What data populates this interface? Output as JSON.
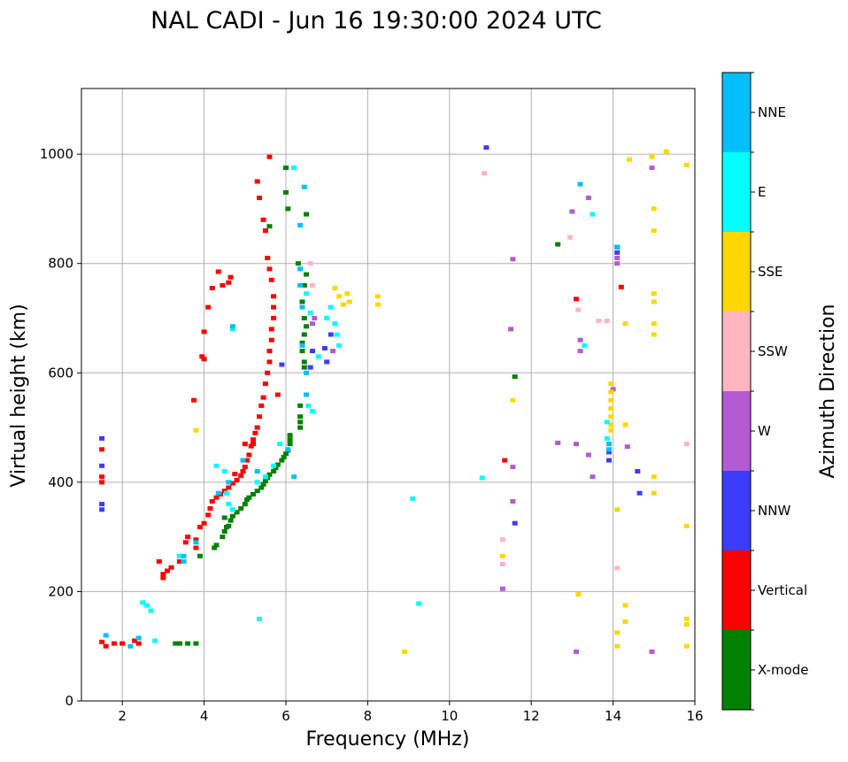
{
  "colors": {
    "X-mode": "#008000",
    "Vertical": "#ff0000",
    "NNW": "#3c3cff",
    "W": "#b45ad2",
    "SSW": "#ffb6c1",
    "SSE": "#ffd700",
    "E": "#00ffff",
    "NNE": "#00bfff"
  },
  "chart_data": {
    "type": "scatter",
    "title": "NAL CADI - Jun 16 19:30:00 2024 UTC",
    "xlabel": "Frequency (MHz)",
    "ylabel": "Virtual height (km)",
    "xlim": [
      1.0,
      16.0
    ],
    "ylim": [
      0,
      1120
    ],
    "xticks": [
      2,
      4,
      6,
      8,
      10,
      12,
      14,
      16
    ],
    "yticks": [
      0,
      200,
      400,
      600,
      800,
      1000
    ],
    "grid": true,
    "colorbar": {
      "label": "Azimuth Direction",
      "categories": [
        "X-mode",
        "Vertical",
        "NNW",
        "W",
        "SSW",
        "SSE",
        "E",
        "NNE"
      ]
    },
    "series": [
      {
        "name": "X-mode",
        "points": [
          [
            3.6,
            105
          ],
          [
            3.8,
            105
          ],
          [
            3.4,
            105
          ],
          [
            3.3,
            105
          ],
          [
            3.9,
            265
          ],
          [
            4.25,
            280
          ],
          [
            4.3,
            285
          ],
          [
            4.45,
            300
          ],
          [
            4.5,
            310
          ],
          [
            4.55,
            318
          ],
          [
            4.65,
            330
          ],
          [
            4.7,
            338
          ],
          [
            4.8,
            345
          ],
          [
            4.9,
            352
          ],
          [
            5.0,
            360
          ],
          [
            5.05,
            368
          ],
          [
            5.1,
            372
          ],
          [
            5.2,
            378
          ],
          [
            5.3,
            384
          ],
          [
            5.4,
            390
          ],
          [
            5.45,
            396
          ],
          [
            5.5,
            402
          ],
          [
            5.55,
            408
          ],
          [
            5.6,
            414
          ],
          [
            5.7,
            420
          ],
          [
            5.75,
            426
          ],
          [
            5.8,
            432
          ],
          [
            5.9,
            440
          ],
          [
            5.95,
            446
          ],
          [
            6.0,
            452
          ],
          [
            6.05,
            458
          ],
          [
            6.1,
            470
          ],
          [
            6.1,
            478
          ],
          [
            6.1,
            486
          ],
          [
            6.35,
            500
          ],
          [
            6.35,
            510
          ],
          [
            6.35,
            520
          ],
          [
            6.35,
            540
          ],
          [
            6.45,
            610
          ],
          [
            6.45,
            620
          ],
          [
            6.4,
            640
          ],
          [
            6.4,
            655
          ],
          [
            6.45,
            670
          ],
          [
            6.5,
            685
          ],
          [
            6.45,
            700
          ],
          [
            6.4,
            730
          ],
          [
            6.45,
            760
          ],
          [
            6.5,
            780
          ],
          [
            6.5,
            890
          ],
          [
            6.0,
            930
          ],
          [
            6.0,
            975
          ],
          [
            6.3,
            800
          ],
          [
            6.05,
            900
          ],
          [
            12.65,
            835
          ],
          [
            11.6,
            593
          ],
          [
            4.5,
            335
          ],
          [
            4.6,
            320
          ],
          [
            5.6,
            868
          ]
        ]
      },
      {
        "name": "Vertical",
        "points": [
          [
            1.5,
            460
          ],
          [
            1.5,
            410
          ],
          [
            1.5,
            400
          ],
          [
            1.5,
            108
          ],
          [
            1.6,
            100
          ],
          [
            1.8,
            105
          ],
          [
            2.0,
            105
          ],
          [
            2.3,
            110
          ],
          [
            2.4,
            105
          ],
          [
            2.9,
            255
          ],
          [
            3.0,
            232
          ],
          [
            3.1,
            238
          ],
          [
            3.2,
            244
          ],
          [
            3.4,
            255
          ],
          [
            3.8,
            280
          ],
          [
            3.8,
            295
          ],
          [
            3.9,
            318
          ],
          [
            4.0,
            325
          ],
          [
            4.1,
            340
          ],
          [
            4.15,
            352
          ],
          [
            4.2,
            365
          ],
          [
            4.3,
            372
          ],
          [
            4.4,
            378
          ],
          [
            4.5,
            384
          ],
          [
            4.6,
            390
          ],
          [
            4.7,
            398
          ],
          [
            4.8,
            404
          ],
          [
            4.9,
            412
          ],
          [
            4.95,
            420
          ],
          [
            5.0,
            428
          ],
          [
            5.05,
            440
          ],
          [
            5.1,
            450
          ],
          [
            5.15,
            466
          ],
          [
            5.2,
            478
          ],
          [
            5.25,
            490
          ],
          [
            5.3,
            500
          ],
          [
            5.35,
            520
          ],
          [
            5.4,
            540
          ],
          [
            5.45,
            555
          ],
          [
            5.5,
            580
          ],
          [
            5.55,
            600
          ],
          [
            5.6,
            620
          ],
          [
            5.6,
            640
          ],
          [
            5.65,
            660
          ],
          [
            5.65,
            680
          ],
          [
            5.7,
            700
          ],
          [
            5.7,
            720
          ],
          [
            5.7,
            740
          ],
          [
            5.65,
            770
          ],
          [
            5.6,
            790
          ],
          [
            5.55,
            810
          ],
          [
            5.5,
            860
          ],
          [
            5.45,
            880
          ],
          [
            5.35,
            920
          ],
          [
            5.3,
            950
          ],
          [
            5.6,
            995
          ],
          [
            4.2,
            755
          ],
          [
            4.45,
            760
          ],
          [
            4.6,
            765
          ],
          [
            4.65,
            775
          ],
          [
            4.0,
            625
          ],
          [
            4.0,
            675
          ],
          [
            3.95,
            630
          ],
          [
            3.75,
            550
          ],
          [
            4.35,
            785
          ],
          [
            4.1,
            720
          ],
          [
            4.75,
            415
          ],
          [
            3.6,
            300
          ],
          [
            3.55,
            290
          ],
          [
            3.0,
            225
          ],
          [
            13.1,
            735
          ],
          [
            14.2,
            757
          ],
          [
            11.35,
            440
          ],
          [
            5.8,
            560
          ],
          [
            5.2,
            470
          ],
          [
            5.0,
            470
          ]
        ]
      },
      {
        "name": "NNW",
        "points": [
          [
            1.5,
            480
          ],
          [
            1.5,
            430
          ],
          [
            1.5,
            360
          ],
          [
            1.5,
            350
          ],
          [
            5.9,
            615
          ],
          [
            6.6,
            610
          ],
          [
            6.65,
            640
          ],
          [
            7.1,
            670
          ],
          [
            6.95,
            645
          ],
          [
            7.0,
            620
          ],
          [
            10.9,
            1012
          ],
          [
            11.6,
            325
          ],
          [
            13.9,
            440
          ],
          [
            13.9,
            455
          ],
          [
            13.9,
            470
          ],
          [
            14.1,
            820
          ],
          [
            14.1,
            830
          ],
          [
            14.65,
            380
          ],
          [
            14.6,
            420
          ]
        ]
      },
      {
        "name": "W",
        "points": [
          [
            6.7,
            700
          ],
          [
            6.65,
            690
          ],
          [
            7.15,
            640
          ],
          [
            11.5,
            680
          ],
          [
            11.55,
            808
          ],
          [
            11.3,
            205
          ],
          [
            13.2,
            660
          ],
          [
            13.2,
            640
          ],
          [
            13.1,
            470
          ],
          [
            13.4,
            450
          ],
          [
            13.4,
            920
          ],
          [
            13.5,
            410
          ],
          [
            14.0,
            570
          ],
          [
            14.1,
            800
          ],
          [
            14.1,
            810
          ],
          [
            14.35,
            465
          ],
          [
            14.95,
            975
          ],
          [
            14.95,
            90
          ],
          [
            13.1,
            90
          ],
          [
            13.0,
            895
          ],
          [
            12.65,
            472
          ],
          [
            11.55,
            428
          ],
          [
            11.55,
            365
          ]
        ]
      },
      {
        "name": "SSW",
        "points": [
          [
            10.85,
            965
          ],
          [
            11.3,
            295
          ],
          [
            11.3,
            250
          ],
          [
            13.15,
            715
          ],
          [
            12.95,
            848
          ],
          [
            13.65,
            695
          ],
          [
            13.85,
            695
          ],
          [
            14.1,
            243
          ],
          [
            15.8,
            470
          ],
          [
            6.6,
            800
          ],
          [
            6.65,
            760
          ],
          [
            6.65,
            760
          ]
        ]
      },
      {
        "name": "SSE",
        "points": [
          [
            7.2,
            755
          ],
          [
            7.3,
            740
          ],
          [
            7.4,
            725
          ],
          [
            7.55,
            730
          ],
          [
            7.5,
            745
          ],
          [
            8.25,
            740
          ],
          [
            8.25,
            725
          ],
          [
            8.9,
            90
          ],
          [
            11.3,
            265
          ],
          [
            11.55,
            550
          ],
          [
            13.15,
            195
          ],
          [
            13.95,
            580
          ],
          [
            13.95,
            565
          ],
          [
            13.95,
            550
          ],
          [
            13.95,
            535
          ],
          [
            13.95,
            520
          ],
          [
            13.95,
            505
          ],
          [
            13.95,
            495
          ],
          [
            14.1,
            350
          ],
          [
            14.1,
            125
          ],
          [
            14.1,
            100
          ],
          [
            14.4,
            990
          ],
          [
            14.3,
            690
          ],
          [
            14.3,
            505
          ],
          [
            14.3,
            175
          ],
          [
            14.3,
            145
          ],
          [
            14.95,
            995
          ],
          [
            15.0,
            900
          ],
          [
            15.0,
            860
          ],
          [
            15.0,
            745
          ],
          [
            15.0,
            730
          ],
          [
            15.0,
            690
          ],
          [
            15.0,
            670
          ],
          [
            15.0,
            410
          ],
          [
            15.0,
            380
          ],
          [
            15.3,
            1005
          ],
          [
            15.8,
            980
          ],
          [
            15.8,
            320
          ],
          [
            15.8,
            150
          ],
          [
            15.8,
            140
          ],
          [
            15.8,
            100
          ],
          [
            3.8,
            495
          ]
        ]
      },
      {
        "name": "E",
        "points": [
          [
            2.5,
            180
          ],
          [
            2.6,
            175
          ],
          [
            2.7,
            165
          ],
          [
            2.8,
            110
          ],
          [
            3.4,
            265
          ],
          [
            4.3,
            430
          ],
          [
            4.5,
            420
          ],
          [
            4.55,
            380
          ],
          [
            4.6,
            360
          ],
          [
            4.7,
            350
          ],
          [
            5.3,
            400
          ],
          [
            5.5,
            410
          ],
          [
            5.7,
            430
          ],
          [
            5.85,
            470
          ],
          [
            6.2,
            975
          ],
          [
            6.5,
            745
          ],
          [
            6.6,
            710
          ],
          [
            6.55,
            540
          ],
          [
            6.65,
            530
          ],
          [
            7.0,
            700
          ],
          [
            7.1,
            720
          ],
          [
            7.2,
            690
          ],
          [
            7.25,
            670
          ],
          [
            7.3,
            650
          ],
          [
            6.8,
            630
          ],
          [
            9.1,
            370
          ],
          [
            9.25,
            178
          ],
          [
            10.8,
            408
          ],
          [
            13.3,
            650
          ],
          [
            13.5,
            890
          ],
          [
            13.85,
            510
          ],
          [
            13.85,
            480
          ],
          [
            5.35,
            150
          ],
          [
            4.7,
            680
          ]
        ]
      },
      {
        "name": "NNE",
        "points": [
          [
            1.6,
            120
          ],
          [
            2.2,
            100
          ],
          [
            2.4,
            115
          ],
          [
            3.5,
            265
          ],
          [
            3.5,
            255
          ],
          [
            3.8,
            290
          ],
          [
            4.35,
            380
          ],
          [
            4.6,
            400
          ],
          [
            4.95,
            440
          ],
          [
            5.3,
            420
          ],
          [
            6.05,
            460
          ],
          [
            6.2,
            410
          ],
          [
            6.35,
            870
          ],
          [
            6.45,
            940
          ],
          [
            6.35,
            790
          ],
          [
            6.35,
            760
          ],
          [
            6.4,
            720
          ],
          [
            6.4,
            650
          ],
          [
            6.5,
            600
          ],
          [
            6.5,
            560
          ],
          [
            4.7,
            685
          ],
          [
            13.2,
            945
          ],
          [
            13.9,
            470
          ],
          [
            13.9,
            460
          ],
          [
            14.1,
            830
          ]
        ]
      }
    ]
  }
}
